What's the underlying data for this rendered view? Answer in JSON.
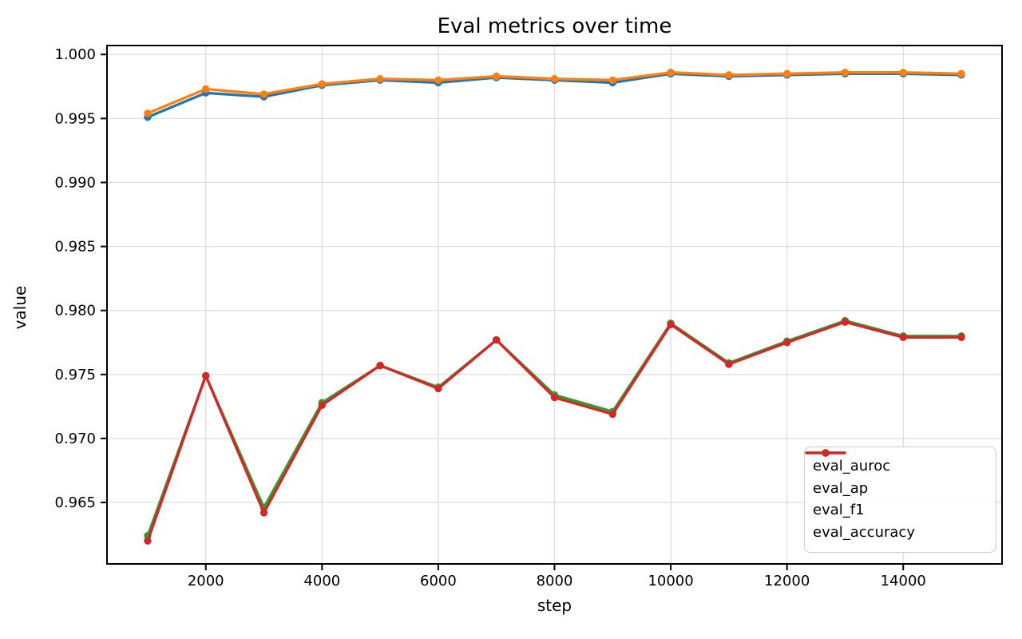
{
  "chart_data": {
    "type": "line",
    "title": "Eval metrics over time",
    "xlabel": "step",
    "ylabel": "value",
    "grid": true,
    "marker": "o",
    "legend_position": "lower right",
    "x": [
      1000,
      2000,
      3000,
      4000,
      5000,
      6000,
      7000,
      8000,
      9000,
      10000,
      11000,
      12000,
      13000,
      14000,
      15000
    ],
    "series": [
      {
        "name": "eval_auroc",
        "color": "#1f77b4",
        "values": [
          0.9951,
          0.997,
          0.9967,
          0.9976,
          0.998,
          0.9978,
          0.9982,
          0.998,
          0.9978,
          0.9985,
          0.9983,
          0.9984,
          0.9985,
          0.9985,
          0.9984
        ]
      },
      {
        "name": "eval_ap",
        "color": "#ff7f0e",
        "values": [
          0.9954,
          0.9973,
          0.9969,
          0.9977,
          0.9981,
          0.998,
          0.9983,
          0.9981,
          0.998,
          0.9986,
          0.9984,
          0.9985,
          0.9986,
          0.9986,
          0.9985
        ]
      },
      {
        "name": "eval_f1",
        "color": "#2ca02c",
        "values": [
          0.9624,
          0.9749,
          0.9646,
          0.9728,
          0.9757,
          0.974,
          0.9777,
          0.9734,
          0.9721,
          0.979,
          0.9759,
          0.9776,
          0.9792,
          0.978,
          0.978
        ]
      },
      {
        "name": "eval_accuracy",
        "color": "#d62728",
        "values": [
          0.962,
          0.9749,
          0.9642,
          0.9726,
          0.9757,
          0.9739,
          0.9777,
          0.9732,
          0.9719,
          0.9789,
          0.9758,
          0.9775,
          0.9791,
          0.9779,
          0.9779
        ]
      }
    ],
    "xticks": {
      "values": [
        2000,
        4000,
        6000,
        8000,
        10000,
        12000,
        14000
      ],
      "labels": [
        "2000",
        "4000",
        "6000",
        "8000",
        "10000",
        "12000",
        "14000"
      ]
    },
    "yticks": {
      "values": [
        0.965,
        0.97,
        0.975,
        0.98,
        0.985,
        0.99,
        0.995,
        1.0
      ],
      "labels": [
        "0.965",
        "0.970",
        "0.975",
        "0.980",
        "0.985",
        "0.990",
        "0.995",
        "1.000"
      ]
    },
    "xlim": [
      300,
      15700
    ],
    "ylim": [
      0.9602,
      1.0007
    ],
    "colors": {
      "grid": "#e0e0e0",
      "spine": "#000000",
      "text": "#000000",
      "background": "#ffffff"
    }
  }
}
